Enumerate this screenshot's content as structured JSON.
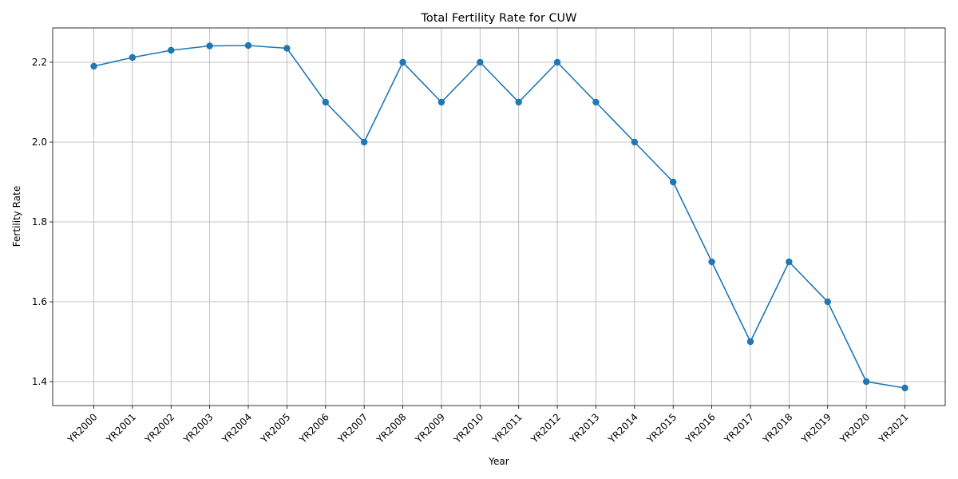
{
  "chart_data": {
    "type": "line",
    "title": "Total Fertility Rate for CUW",
    "xlabel": "Year",
    "ylabel": "Fertility Rate",
    "categories": [
      "YR2000",
      "YR2001",
      "YR2002",
      "YR2003",
      "YR2004",
      "YR2005",
      "YR2006",
      "YR2007",
      "YR2008",
      "YR2009",
      "YR2010",
      "YR2011",
      "YR2012",
      "YR2013",
      "YR2014",
      "YR2015",
      "YR2016",
      "YR2017",
      "YR2018",
      "YR2019",
      "YR2020",
      "YR2021"
    ],
    "series": [
      {
        "values": [
          2.19,
          2.212,
          2.23,
          2.241,
          2.242,
          2.235,
          2.1,
          2.0,
          2.2,
          2.1,
          2.2,
          2.1,
          2.2,
          2.1,
          2.0,
          1.9,
          1.7,
          1.5,
          1.7,
          1.6,
          1.4,
          1.384
        ],
        "color": "#1f77b4",
        "marker": "circle"
      }
    ],
    "ylim": [
      1.34,
      2.286
    ],
    "yticks": [
      1.4,
      1.6,
      1.8,
      2.0,
      2.2
    ],
    "ytick_labels": [
      "1.4",
      "1.6",
      "1.8",
      "2.0",
      "2.2"
    ],
    "grid": true,
    "x_tick_rotation": 45
  }
}
